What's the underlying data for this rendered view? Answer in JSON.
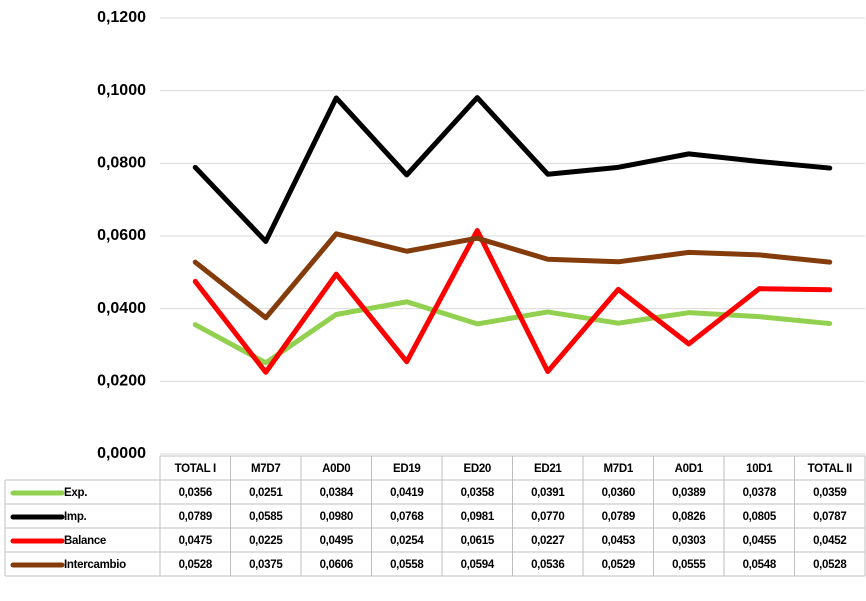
{
  "chart_data": {
    "type": "line",
    "categories": [
      "TOTAL I",
      "M7D7",
      "A0D0",
      "ED19",
      "ED20",
      "ED21",
      "M7D1",
      "A0D1",
      "10D1",
      "TOTAL II"
    ],
    "series": [
      {
        "name": "Exp.",
        "color": "#92d050",
        "values": [
          0.0356,
          0.0251,
          0.0384,
          0.0419,
          0.0358,
          0.0391,
          0.036,
          0.0389,
          0.0378,
          0.0359
        ],
        "value_labels": [
          "0,0356",
          "0,0251",
          "0,0384",
          "0,0419",
          "0,0358",
          "0,0391",
          "0,0360",
          "0,0389",
          "0,0378",
          "0,0359"
        ]
      },
      {
        "name": "Imp.",
        "color": "#000000",
        "values": [
          0.0789,
          0.0585,
          0.098,
          0.0768,
          0.0981,
          0.077,
          0.0789,
          0.0826,
          0.0805,
          0.0787
        ],
        "value_labels": [
          "0,0789",
          "0,0585",
          "0,0980",
          "0,0768",
          "0,0981",
          "0,0770",
          "0,0789",
          "0,0826",
          "0,0805",
          "0,0787"
        ]
      },
      {
        "name": "Balance",
        "color": "#ff0000",
        "values": [
          0.0475,
          0.0225,
          0.0495,
          0.0254,
          0.0615,
          0.0227,
          0.0453,
          0.0303,
          0.0455,
          0.0452
        ],
        "value_labels": [
          "0,0475",
          "0,0225",
          "0,0495",
          "0,0254",
          "0,0615",
          "0,0227",
          "0,0453",
          "0,0303",
          "0,0455",
          "0,0452"
        ]
      },
      {
        "name": "Intercambio",
        "color": "#843c0c",
        "values": [
          0.0528,
          0.0375,
          0.0606,
          0.0558,
          0.0594,
          0.0536,
          0.0529,
          0.0555,
          0.0548,
          0.0528
        ],
        "value_labels": [
          "0,0528",
          "0,0375",
          "0,0606",
          "0,0558",
          "0,0594",
          "0,0536",
          "0,0529",
          "0,0555",
          "0,0548",
          "0,0528"
        ]
      }
    ],
    "ylim": [
      0,
      0.12
    ],
    "yticks": [
      {
        "value": 0,
        "label": "0,0000"
      },
      {
        "value": 0.02,
        "label": "0,0200"
      },
      {
        "value": 0.04,
        "label": "0,0400"
      },
      {
        "value": 0.06,
        "label": "0,0600"
      },
      {
        "value": 0.08,
        "label": "0,0800"
      },
      {
        "value": 0.1,
        "label": "0,1000"
      },
      {
        "value": 0.12,
        "label": "0,1200"
      }
    ],
    "grid": true,
    "data_table": true
  }
}
